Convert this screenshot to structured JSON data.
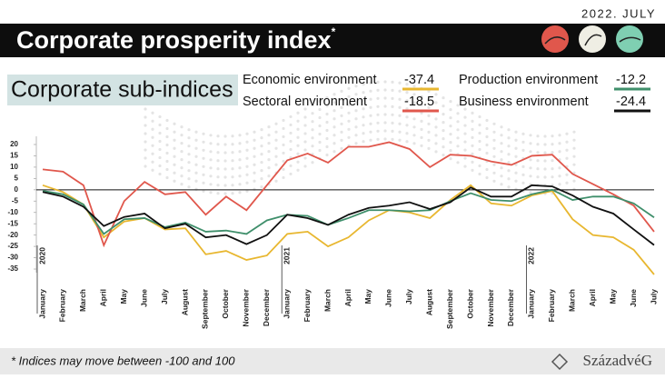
{
  "date": "2022. JULY",
  "chart_data": {
    "type": "line",
    "title": "Corporate prosperity index",
    "title_mark": "*",
    "subtitle": "Corporate sub-indices",
    "categories": [
      "January",
      "February",
      "March",
      "April",
      "May",
      "June",
      "July",
      "August",
      "September",
      "October",
      "November",
      "December",
      "January",
      "February",
      "March",
      "April",
      "May",
      "June",
      "July",
      "August",
      "September",
      "October",
      "November",
      "December",
      "January",
      "February",
      "March",
      "April",
      "May",
      "June",
      "July"
    ],
    "years": [
      "2020",
      "2021",
      "2022"
    ],
    "series": [
      {
        "name": "Economic environment",
        "color": "#e8b730",
        "values": [
          2,
          -1,
          -6.5,
          -21,
          -14,
          -12.5,
          -17.5,
          -17,
          -28.5,
          -27,
          -31,
          -29,
          -19.5,
          -18.5,
          -25,
          -21,
          -13.5,
          -9,
          -10,
          -12.5,
          -4.5,
          2,
          -6,
          -7,
          -2.5,
          -0.5,
          -13,
          -20,
          -21,
          -26.5,
          -37.4
        ]
      },
      {
        "name": "Sectoral environment",
        "color": "#e0574c",
        "values": [
          9,
          8,
          2,
          -24.5,
          -5,
          3.5,
          -2,
          -1,
          -11,
          -3,
          -9,
          2,
          13,
          16,
          12,
          19,
          19,
          21,
          18,
          10,
          15.5,
          15,
          12.5,
          11,
          15,
          15.5,
          7,
          2.5,
          -2,
          -7,
          -18.5
        ]
      },
      {
        "name": "Production environment",
        "color": "#3f8f6b",
        "values": [
          -0.5,
          -2,
          -6.5,
          -19.5,
          -13,
          -12.5,
          -16.5,
          -14.5,
          -18.5,
          -18,
          -19.5,
          -13.5,
          -11,
          -11.5,
          -15.5,
          -12.5,
          -9,
          -9,
          -9.5,
          -9,
          -5,
          -1.5,
          -4.5,
          -5,
          -2,
          0,
          -4.5,
          -3,
          -3,
          -6,
          -12.2
        ]
      },
      {
        "name": "Business environment",
        "color": "#111111",
        "values": [
          -1,
          -3,
          -7.5,
          -16,
          -12,
          -10.5,
          -17,
          -15,
          -21,
          -20,
          -24,
          -20,
          -11,
          -12.5,
          -15.5,
          -11,
          -8,
          -7,
          -5.5,
          -8.5,
          -5.5,
          1,
          -3,
          -3,
          2,
          1.5,
          -2.5,
          -7.5,
          -10.5,
          -17.5,
          -24.4
        ]
      }
    ],
    "ylim": [
      -38,
      22
    ],
    "yticks": [
      20,
      15,
      10,
      5,
      0,
      -5,
      -10,
      -15,
      -20,
      -25,
      -30,
      -35
    ]
  },
  "footnote": "* Indices may move between -100 and 100",
  "logo": "SzázadvéG"
}
